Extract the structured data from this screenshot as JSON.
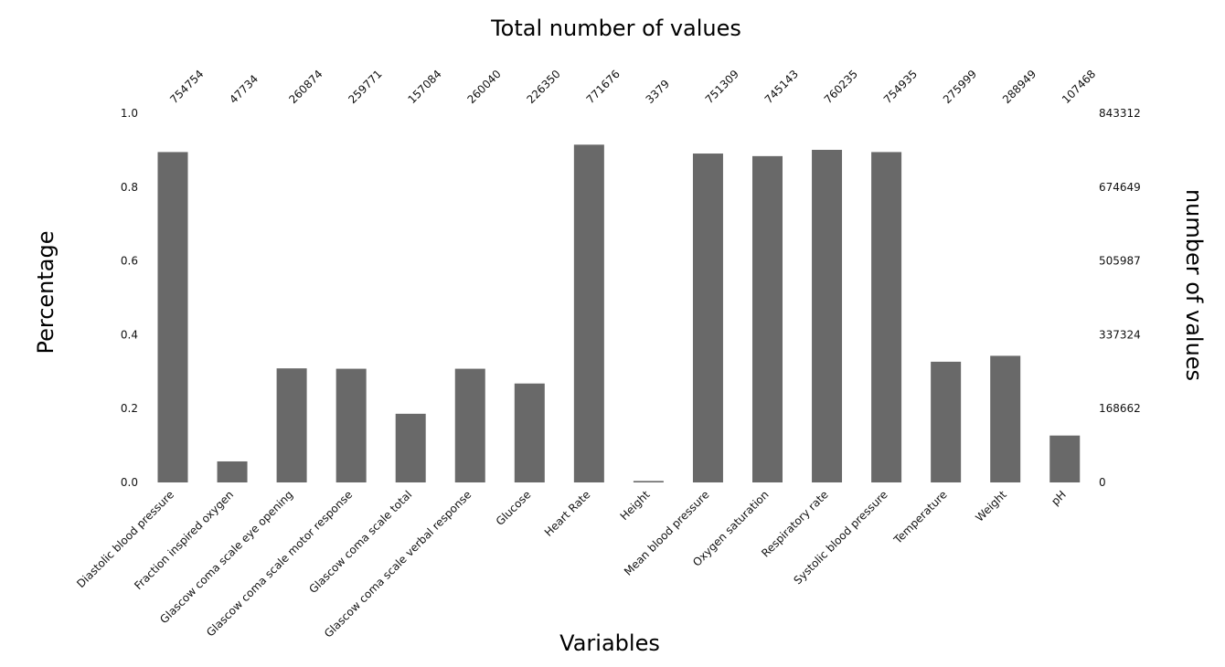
{
  "chart_data": {
    "type": "bar",
    "title": "Total number of values",
    "xlabel": "Variables",
    "ylabel": "Percentage",
    "ylabel_right": "number of values",
    "ylim": [
      0,
      1
    ],
    "y_ticks": [
      "0.0",
      "0.2",
      "0.4",
      "0.6",
      "0.8",
      "1.0"
    ],
    "y_right_ticks": [
      "0",
      "168662",
      "337324",
      "505987",
      "674649",
      "843312"
    ],
    "bar_color": "#696969",
    "grid": false,
    "categories": [
      "Diastolic blood pressure",
      "Fraction inspired oxygen",
      "Glascow coma scale eye opening",
      "Glascow coma scale motor response",
      "Glascow coma scale total",
      "Glascow coma scale verbal response",
      "Glucose",
      "Heart Rate",
      "Height",
      "Mean blood pressure",
      "Oxygen saturation",
      "Respiratory rate",
      "Systolic blood pressure",
      "Temperature",
      "Weight",
      "pH"
    ],
    "counts": [
      "754754",
      "47734",
      "260874",
      "259771",
      "157084",
      "260040",
      "226350",
      "771676",
      "3379",
      "751309",
      "745143",
      "760235",
      "754935",
      "275999",
      "288949",
      "107468"
    ],
    "values": [
      0.895,
      0.057,
      0.309,
      0.308,
      0.186,
      0.308,
      0.268,
      0.915,
      0.004,
      0.891,
      0.884,
      0.901,
      0.895,
      0.327,
      0.343,
      0.127
    ]
  }
}
